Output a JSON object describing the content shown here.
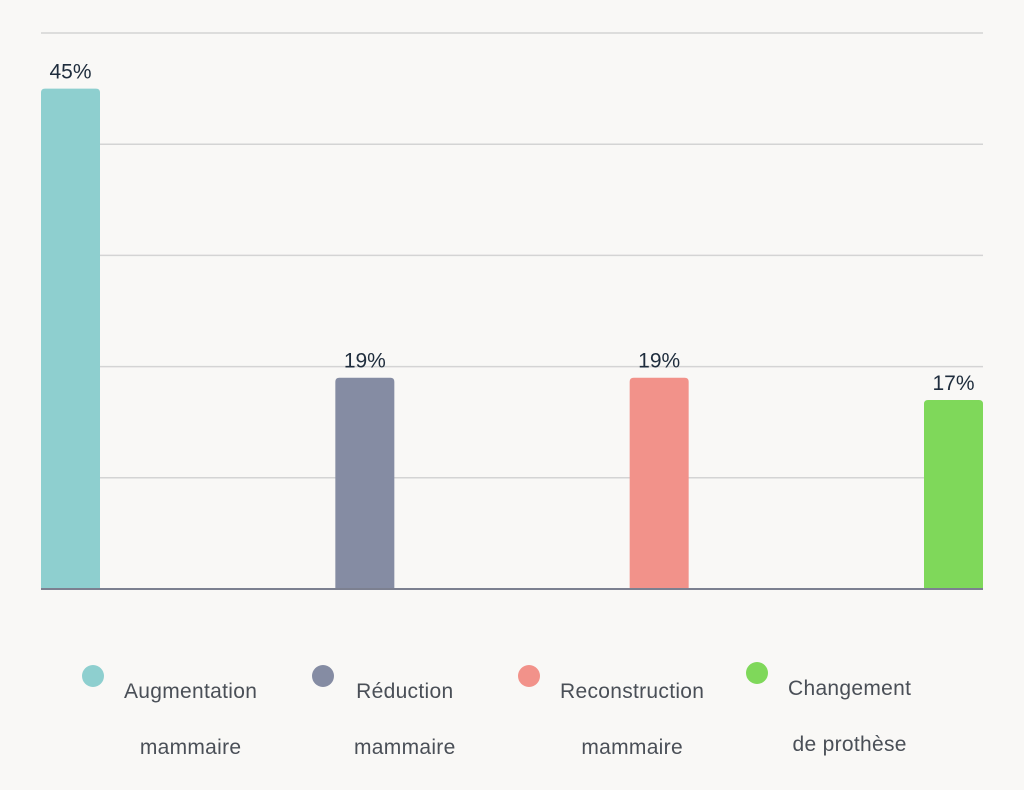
{
  "chart_data": {
    "type": "bar",
    "categories": [
      "Augmentation mammaire",
      "Réduction mammaire",
      "Reconstruction mammaire",
      "Changement de prothèse"
    ],
    "values": [
      45,
      19,
      19,
      17
    ],
    "value_labels": [
      "45%",
      "19%",
      "19%",
      "17%"
    ],
    "colors": [
      "#8ecfcf",
      "#858ca3",
      "#f2928a",
      "#7fd85a"
    ],
    "ylim": [
      0,
      50
    ],
    "grid": true,
    "legend": "bottom",
    "title": "",
    "xlabel": "",
    "ylabel": ""
  },
  "legend": {
    "items": [
      {
        "line1": "Augmentation",
        "line2": "mammaire",
        "color": "#8ecfcf"
      },
      {
        "line1": "Réduction",
        "line2": "mammaire",
        "color": "#858ca3"
      },
      {
        "line1": "Reconstruction",
        "line2": "mammaire",
        "color": "#f2928a"
      },
      {
        "line1": "Changement",
        "line2": "de prothèse",
        "color": "#7fd85a"
      }
    ]
  }
}
